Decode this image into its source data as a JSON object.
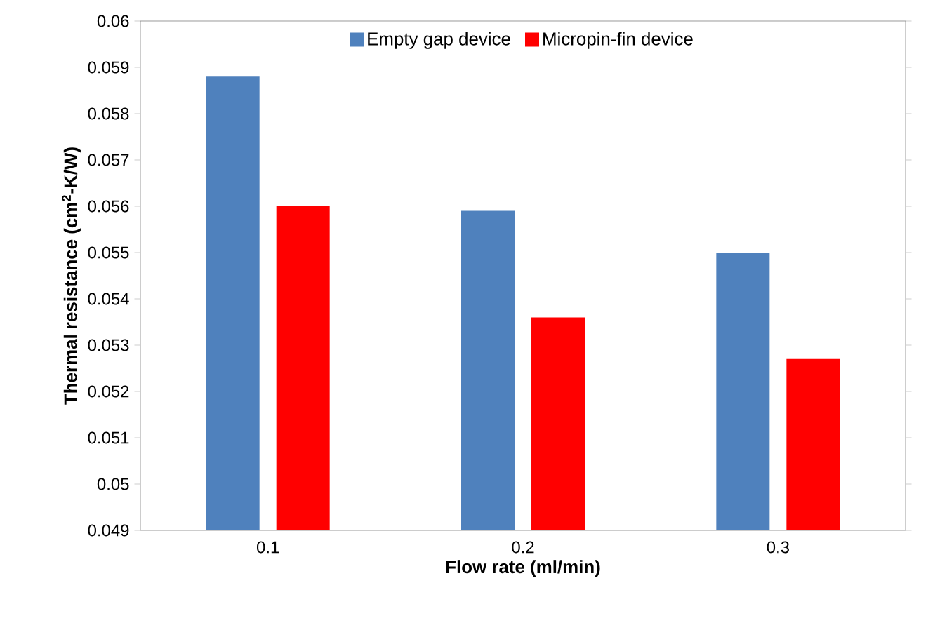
{
  "chart_data": {
    "type": "bar",
    "xlabel": "Flow rate (ml/min)",
    "ylabel": "Thermal resistance (cm$^{2}$-K/W)",
    "categories": [
      "0.1",
      "0.2",
      "0.3"
    ],
    "series": [
      {
        "name": "Empty gap device",
        "color": "#4f81bd",
        "values": [
          0.0588,
          0.0559,
          0.055
        ]
      },
      {
        "name": "Micropin-fin device",
        "color": "#ff0000",
        "values": [
          0.056,
          0.0536,
          0.0527
        ]
      }
    ],
    "ylim": [
      0.049,
      0.06
    ],
    "yticks": [
      0.049,
      0.05,
      0.051,
      0.052,
      0.053,
      0.054,
      0.055,
      0.056,
      0.057,
      0.058,
      0.059,
      0.06
    ],
    "legend": "top"
  }
}
